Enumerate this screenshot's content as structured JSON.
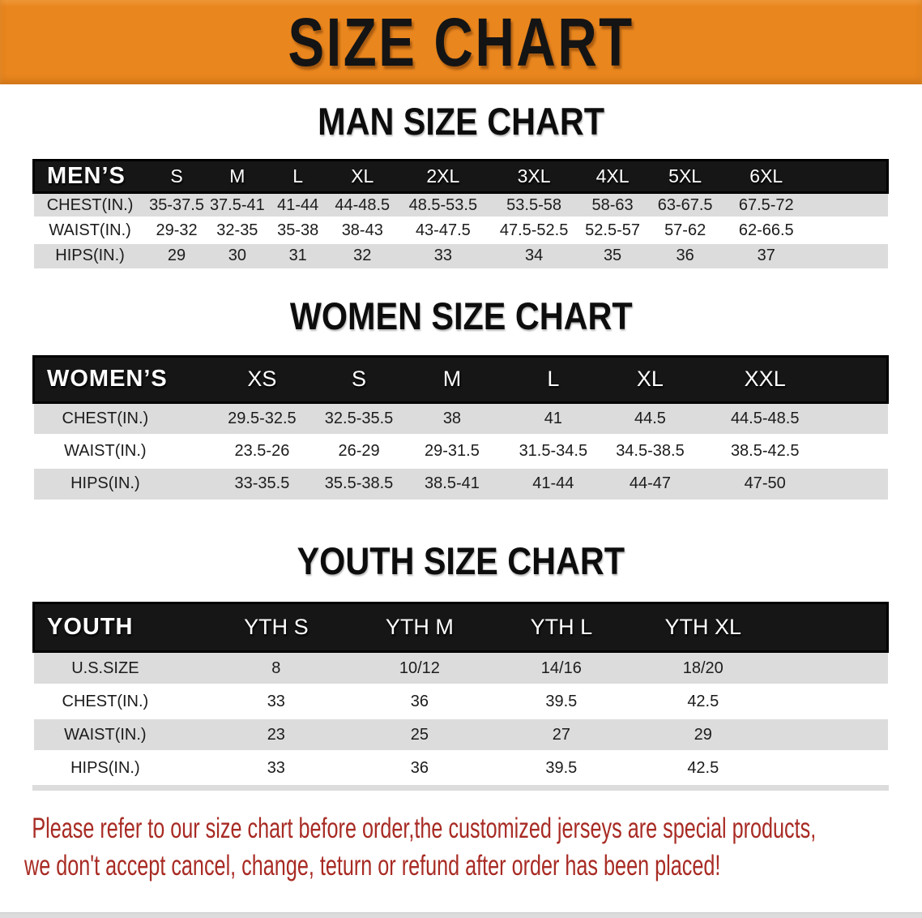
{
  "banner": {
    "title": "SIZE CHART"
  },
  "colors": {
    "banner_orange": "#E9861E",
    "header_band_black": "#161616",
    "row_stripe_gray": "#DCDCDC",
    "notice_red": "#A82B24"
  },
  "sections": [
    {
      "id": "men",
      "title": "MAN SIZE CHART",
      "table": {
        "header_label": "MEN’S",
        "columns": [
          "S",
          "M",
          "L",
          "XL",
          "2XL",
          "3XL",
          "4XL",
          "5XL",
          "6XL"
        ],
        "rows": [
          {
            "label": "CHEST(IN.)",
            "values": [
              "35-37.5",
              "37.5-41",
              "41-44",
              "44-48.5",
              "48.5-53.5",
              "53.5-58",
              "58-63",
              "63-67.5",
              "67.5-72"
            ]
          },
          {
            "label": "WAIST(IN.)",
            "values": [
              "29-32",
              "32-35",
              "35-38",
              "38-43",
              "43-47.5",
              "47.5-52.5",
              "52.5-57",
              "57-62",
              "62-66.5"
            ]
          },
          {
            "label": "HIPS(IN.)",
            "values": [
              "29",
              "30",
              "31",
              "32",
              "33",
              "34",
              "35",
              "36",
              "37"
            ]
          }
        ]
      }
    },
    {
      "id": "women",
      "title": "WOMEN SIZE CHART",
      "table": {
        "header_label": "WOMEN’S",
        "columns": [
          "XS",
          "S",
          "M",
          "L",
          "XL",
          "XXL"
        ],
        "rows": [
          {
            "label": "CHEST(IN.)",
            "values": [
              "29.5-32.5",
              "32.5-35.5",
              "38",
              "41",
              "44.5",
              "44.5-48.5"
            ]
          },
          {
            "label": "WAIST(IN.)",
            "values": [
              "23.5-26",
              "26-29",
              "29-31.5",
              "31.5-34.5",
              "34.5-38.5",
              "38.5-42.5"
            ]
          },
          {
            "label": "HIPS(IN.)",
            "values": [
              "33-35.5",
              "35.5-38.5",
              "38.5-41",
              "41-44",
              "44-47",
              "47-50"
            ]
          }
        ]
      }
    },
    {
      "id": "youth",
      "title": "YOUTH SIZE CHART",
      "table": {
        "header_label": "YOUTH",
        "columns": [
          "YTH S",
          "YTH M",
          "YTH L",
          "YTH XL"
        ],
        "rows": [
          {
            "label": "U.S.SIZE",
            "values": [
              "8",
              "10/12",
              "14/16",
              "18/20"
            ]
          },
          {
            "label": "CHEST(IN.)",
            "values": [
              "33",
              "36",
              "39.5",
              "42.5"
            ]
          },
          {
            "label": "WAIST(IN.)",
            "values": [
              "23",
              "25",
              "27",
              "29"
            ]
          },
          {
            "label": "HIPS(IN.)",
            "values": [
              "33",
              "36",
              "39.5",
              "42.5"
            ]
          }
        ]
      }
    }
  ],
  "notice": {
    "line1": "Please refer to our size chart before order,the customized jerseys are special products,",
    "line2": "we don't accept cancel, change, teturn or refund after order has been placed!"
  }
}
